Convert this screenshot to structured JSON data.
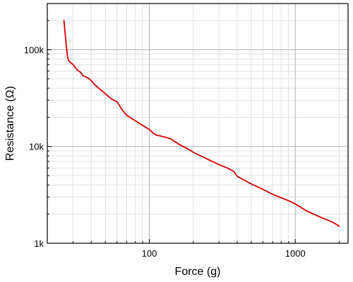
{
  "chart_data": {
    "type": "line",
    "title": "",
    "xlabel": "Force (g)",
    "ylabel": "Resistance (Ω)",
    "x_scale": "log",
    "y_scale": "log",
    "xlim": [
      20,
      2300
    ],
    "ylim": [
      1000,
      300000
    ],
    "x_ticks": [
      {
        "value": 100,
        "label": "100"
      },
      {
        "value": 1000,
        "label": "1000"
      }
    ],
    "y_ticks": [
      {
        "value": 1000,
        "label": "1k"
      },
      {
        "value": 10000,
        "label": "10k"
      },
      {
        "value": 100000,
        "label": "100k"
      }
    ],
    "grid": true,
    "legend": "none",
    "colors": {
      "line": "#d40000",
      "major_grid": "#b0b0b0",
      "minor_grid": "#e0e0e0",
      "axis": "#000000"
    },
    "series": [
      {
        "x": [
          26,
          27,
          27.5,
          28,
          30,
          32,
          34,
          35,
          38,
          40,
          42,
          45,
          50,
          55,
          60,
          62,
          65,
          70,
          80,
          90,
          100,
          105,
          110,
          120,
          130,
          140,
          150,
          160,
          170,
          180,
          200,
          250,
          300,
          350,
          380,
          400,
          500,
          600,
          700,
          800,
          900,
          1000,
          1200,
          1500,
          1800,
          2000
        ],
        "y": [
          200000,
          110000,
          85000,
          77000,
          70000,
          62000,
          58000,
          54000,
          51000,
          48000,
          44000,
          40000,
          35000,
          31000,
          29000,
          27000,
          24000,
          21000,
          18500,
          16500,
          15000,
          14000,
          13200,
          12800,
          12400,
          12000,
          11200,
          10500,
          10000,
          9600,
          8700,
          7400,
          6500,
          5900,
          5500,
          4900,
          4100,
          3600,
          3200,
          2950,
          2750,
          2550,
          2150,
          1850,
          1650,
          1500
        ]
      }
    ]
  }
}
